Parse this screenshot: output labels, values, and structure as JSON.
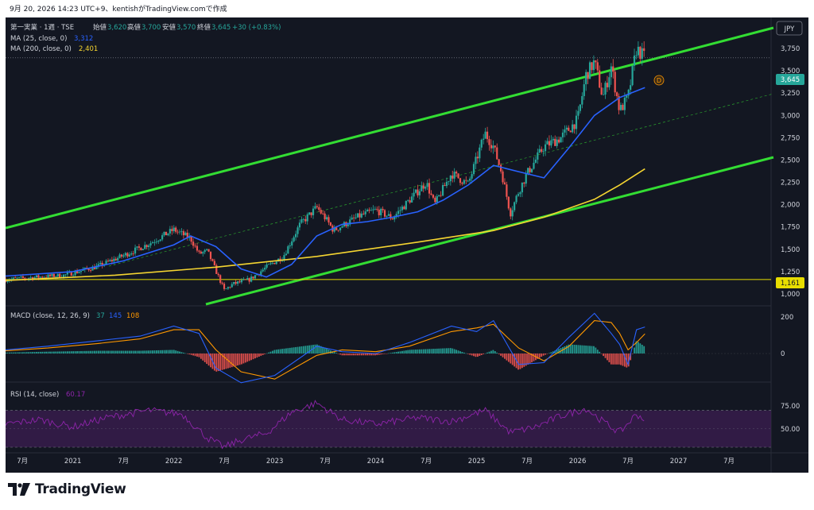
{
  "header": {
    "caption": "9月 20, 2026 14:23 UTC+9、kentishがTradingView.comで作成"
  },
  "legend": {
    "symbol": "第一実業 · 1週 · TSE",
    "open_label": "始値",
    "open": "3,620",
    "high_label": "高値",
    "high": "3,700",
    "low_label": "安値",
    "low": "3,570",
    "close_label": "終値",
    "close": "3,645",
    "change": "+30 (+0.83%)",
    "ma25_label": "MA (25, close, 0)",
    "ma25_value": "3,312",
    "ma200_label": "MA (200, close, 0)",
    "ma200_value": "2,401"
  },
  "currency": "JPY",
  "price_badge": "3,645",
  "hline_badge": "1,161",
  "marker_label": "D",
  "macd": {
    "label": "MACD (close, 12, 26, 9)",
    "v1": "37",
    "v2": "145",
    "v3": "108"
  },
  "rsi": {
    "label": "RSI (14, close)",
    "value": "60.17"
  },
  "brand": {
    "name": "TradingView"
  },
  "colors": {
    "background": "#131722",
    "up": "#26a69a",
    "down": "#ef5350",
    "ma25": "#2962ff",
    "ma200": "#f5d531",
    "channel": "#33dd33",
    "hline": "#e8dd00",
    "macd_line": "#2962ff",
    "signal_line": "#ff9800",
    "rsi_line": "#8e24aa",
    "rsi_band": "#4a1f62",
    "badge_price": "#26a69a"
  },
  "chart_data": [
    {
      "type": "candlestick",
      "title": "第一実業 · 1週 · TSE",
      "x_ticks": [
        "7月",
        "2021",
        "7月",
        "2022",
        "7月",
        "2023",
        "7月",
        "2024",
        "7月",
        "2025",
        "7月",
        "2026",
        "7月",
        "2027",
        "7月"
      ],
      "y_ticks": [
        "4,000",
        "3,750",
        "3,500",
        "3,250",
        "3,000",
        "2,750",
        "2,500",
        "2,250",
        "2,000",
        "1,750",
        "1,500",
        "1,250",
        "1,000"
      ],
      "ylim": [
        890,
        4180
      ],
      "xlim": [
        "2020-05",
        "2027-12"
      ],
      "price_path": [
        [
          "2020-05",
          1160
        ],
        [
          "2020-09",
          1190
        ],
        [
          "2020-12",
          1210
        ],
        [
          "2021-04",
          1310
        ],
        [
          "2021-07",
          1430
        ],
        [
          "2021-10",
          1560
        ],
        [
          "2022-01",
          1720
        ],
        [
          "2022-03",
          1620
        ],
        [
          "2022-04",
          1450
        ],
        [
          "2022-05",
          1480
        ],
        [
          "2022-07",
          1040
        ],
        [
          "2022-08",
          1110
        ],
        [
          "2022-10",
          1160
        ],
        [
          "2022-12",
          1300
        ],
        [
          "2023-02",
          1420
        ],
        [
          "2023-04",
          1780
        ],
        [
          "2023-06",
          1970
        ],
        [
          "2023-07",
          1850
        ],
        [
          "2023-08",
          1710
        ],
        [
          "2023-11",
          1870
        ],
        [
          "2024-01",
          1940
        ],
        [
          "2024-03",
          1850
        ],
        [
          "2024-05",
          2050
        ],
        [
          "2024-07",
          2250
        ],
        [
          "2024-08",
          2000
        ],
        [
          "2024-10",
          2350
        ],
        [
          "2024-12",
          2230
        ],
        [
          "2025-02",
          2800
        ],
        [
          "2025-03",
          2650
        ],
        [
          "2025-04",
          2350
        ],
        [
          "2025-05",
          1900
        ],
        [
          "2025-06",
          2150
        ],
        [
          "2025-07",
          2350
        ],
        [
          "2025-09",
          2650
        ],
        [
          "2025-11",
          2750
        ],
        [
          "2026-01",
          2950
        ],
        [
          "2026-02",
          3450
        ],
        [
          "2026-03",
          3600
        ],
        [
          "2026-04",
          3200
        ],
        [
          "2026-05",
          3550
        ],
        [
          "2026-06",
          3050
        ],
        [
          "2026-07",
          3200
        ],
        [
          "2026-08",
          3750
        ],
        [
          "2026-09",
          3645
        ]
      ],
      "ma25": [
        [
          "2020-05",
          1200
        ],
        [
          "2021-01",
          1250
        ],
        [
          "2021-07",
          1370
        ],
        [
          "2022-01",
          1550
        ],
        [
          "2022-03",
          1650
        ],
        [
          "2022-06",
          1530
        ],
        [
          "2022-09",
          1280
        ],
        [
          "2022-12",
          1190
        ],
        [
          "2023-03",
          1330
        ],
        [
          "2023-06",
          1650
        ],
        [
          "2023-09",
          1780
        ],
        [
          "2023-12",
          1810
        ],
        [
          "2024-03",
          1860
        ],
        [
          "2024-06",
          1920
        ],
        [
          "2024-09",
          2050
        ],
        [
          "2024-12",
          2220
        ],
        [
          "2025-03",
          2440
        ],
        [
          "2025-06",
          2370
        ],
        [
          "2025-09",
          2300
        ],
        [
          "2025-12",
          2640
        ],
        [
          "2026-03",
          3000
        ],
        [
          "2026-06",
          3200
        ],
        [
          "2026-09",
          3312
        ]
      ],
      "ma200": [
        [
          "2020-05",
          1150
        ],
        [
          "2021-06",
          1210
        ],
        [
          "2022-06",
          1300
        ],
        [
          "2023-06",
          1420
        ],
        [
          "2024-06",
          1580
        ],
        [
          "2025-03",
          1710
        ],
        [
          "2025-09",
          1860
        ],
        [
          "2026-03",
          2060
        ],
        [
          "2026-06",
          2220
        ],
        [
          "2026-09",
          2401
        ]
      ],
      "horizontal_line": 1161,
      "last_price": 3645
    },
    {
      "type": "line",
      "title": "MACD (close, 12, 26, 9)",
      "y_ticks": [
        "200",
        "0"
      ],
      "series": [
        {
          "name": "MACD",
          "values": [
            [
              "2020-05",
              20
            ],
            [
              "2020-10",
              40
            ],
            [
              "2021-04",
              70
            ],
            [
              "2021-09",
              95
            ],
            [
              "2022-01",
              150
            ],
            [
              "2022-04",
              110
            ],
            [
              "2022-06",
              -80
            ],
            [
              "2022-09",
              -160
            ],
            [
              "2023-01",
              -120
            ],
            [
              "2023-06",
              40
            ],
            [
              "2023-09",
              10
            ],
            [
              "2024-01",
              0
            ],
            [
              "2024-05",
              60
            ],
            [
              "2024-10",
              150
            ],
            [
              "2025-01",
              120
            ],
            [
              "2025-03",
              180
            ],
            [
              "2025-06",
              -60
            ],
            [
              "2025-09",
              -50
            ],
            [
              "2025-12",
              90
            ],
            [
              "2026-03",
              220
            ],
            [
              "2026-05",
              110
            ],
            [
              "2026-06",
              50
            ],
            [
              "2026-07",
              -60
            ],
            [
              "2026-08",
              130
            ],
            [
              "2026-09",
              145
            ]
          ]
        },
        {
          "name": "Signal",
          "values": [
            [
              "2020-05",
              15
            ],
            [
              "2020-10",
              30
            ],
            [
              "2021-04",
              55
            ],
            [
              "2021-09",
              80
            ],
            [
              "2022-01",
              130
            ],
            [
              "2022-04",
              130
            ],
            [
              "2022-06",
              20
            ],
            [
              "2022-09",
              -100
            ],
            [
              "2023-01",
              -140
            ],
            [
              "2023-06",
              -10
            ],
            [
              "2023-09",
              20
            ],
            [
              "2024-01",
              10
            ],
            [
              "2024-05",
              40
            ],
            [
              "2024-10",
              120
            ],
            [
              "2025-01",
              140
            ],
            [
              "2025-03",
              160
            ],
            [
              "2025-06",
              30
            ],
            [
              "2025-09",
              -40
            ],
            [
              "2025-12",
              40
            ],
            [
              "2026-03",
              180
            ],
            [
              "2026-05",
              170
            ],
            [
              "2026-06",
              110
            ],
            [
              "2026-07",
              20
            ],
            [
              "2026-08",
              60
            ],
            [
              "2026-09",
              108
            ]
          ]
        }
      ]
    },
    {
      "type": "line",
      "title": "RSI (14, close)",
      "y_ticks": [
        "75.00",
        "50.00"
      ],
      "bands": [
        30,
        70
      ],
      "values": [
        [
          "2020-05",
          55
        ],
        [
          "2020-09",
          60
        ],
        [
          "2021-01",
          52
        ],
        [
          "2021-05",
          62
        ],
        [
          "2021-10",
          70
        ],
        [
          "2022-02",
          66
        ],
        [
          "2022-05",
          40
        ],
        [
          "2022-07",
          30
        ],
        [
          "2022-09",
          38
        ],
        [
          "2022-12",
          45
        ],
        [
          "2023-03",
          68
        ],
        [
          "2023-06",
          78
        ],
        [
          "2023-09",
          60
        ],
        [
          "2024-01",
          55
        ],
        [
          "2024-06",
          62
        ],
        [
          "2024-10",
          58
        ],
        [
          "2025-02",
          70
        ],
        [
          "2025-05",
          46
        ],
        [
          "2025-08",
          52
        ],
        [
          "2025-11",
          64
        ],
        [
          "2026-02",
          72
        ],
        [
          "2026-04",
          58
        ],
        [
          "2026-06",
          46
        ],
        [
          "2026-08",
          66
        ],
        [
          "2026-09",
          60
        ]
      ]
    }
  ]
}
